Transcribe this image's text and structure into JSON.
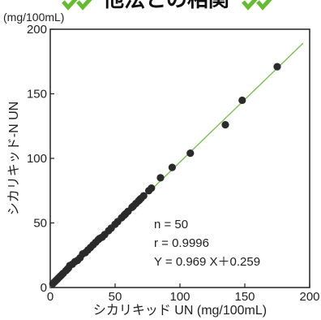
{
  "header": {
    "title_partial": "他法との相関",
    "decor_color": "#66bb33"
  },
  "chart_data": {
    "type": "scatter",
    "title": "他法との相関",
    "xlabel": "シカリキッド  UN (mg/100mL)",
    "ylabel": "シカリキッド-N UN",
    "y_unit": "(mg/100mL)",
    "xlim": [
      0,
      200
    ],
    "ylim": [
      0,
      200
    ],
    "xticks": [
      "0",
      "50",
      "100",
      "150",
      "200"
    ],
    "yticks": [
      "0",
      "50",
      "100",
      "150",
      "200"
    ],
    "grid": false,
    "point_color": "#2a2a2a",
    "line_color": "#7cbd5a",
    "regression": {
      "slope": 0.969,
      "intercept": 0.259,
      "x_range": [
        0,
        195
      ]
    },
    "stats": {
      "n": "n = 50",
      "r": "r  = 0.9996",
      "equation": "Y = 0.969 X＋0.259"
    },
    "points": [
      [
        2,
        3
      ],
      [
        3,
        4
      ],
      [
        4,
        5
      ],
      [
        5,
        6
      ],
      [
        6,
        7
      ],
      [
        7,
        8
      ],
      [
        8,
        9
      ],
      [
        9,
        10
      ],
      [
        10,
        11
      ],
      [
        14,
        15
      ],
      [
        15,
        17
      ],
      [
        17,
        18
      ],
      [
        19,
        20
      ],
      [
        21,
        21
      ],
      [
        23,
        23
      ],
      [
        25,
        26
      ],
      [
        31,
        31
      ],
      [
        33,
        33
      ],
      [
        35,
        35
      ],
      [
        37,
        37
      ],
      [
        40,
        39
      ],
      [
        42,
        41
      ],
      [
        45,
        44
      ],
      [
        47,
        46
      ],
      [
        50,
        49
      ],
      [
        55,
        54
      ],
      [
        57,
        56
      ],
      [
        58,
        57
      ],
      [
        60,
        59
      ],
      [
        63,
        62
      ],
      [
        66,
        65
      ],
      [
        68,
        67
      ],
      [
        69,
        68
      ],
      [
        70,
        69
      ],
      [
        76,
        75
      ],
      [
        78,
        77
      ],
      [
        85,
        85
      ],
      [
        94,
        93
      ],
      [
        108,
        104
      ],
      [
        135,
        126
      ],
      [
        148,
        145
      ],
      [
        175,
        171
      ],
      [
        12,
        13
      ],
      [
        13,
        14
      ],
      [
        27,
        27
      ],
      [
        29,
        29
      ],
      [
        38,
        38
      ],
      [
        52,
        51
      ],
      [
        64,
        63
      ],
      [
        72,
        71
      ]
    ]
  }
}
